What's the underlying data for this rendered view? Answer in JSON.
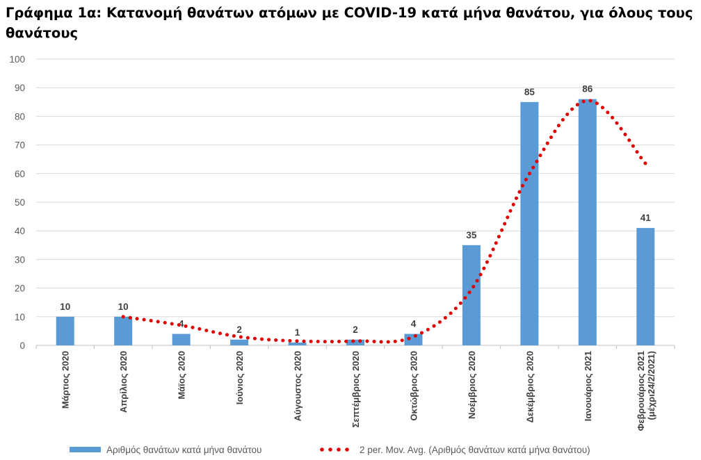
{
  "title": "Γράφημα 1α: Κατανομή θανάτων ατόμων με COVID-19 κατά μήνα θανάτου, για όλους τους θανάτους",
  "chart_data": {
    "type": "bar",
    "title": "Γράφημα 1α: Κατανομή θανάτων ατόμων με COVID-19 κατά μήνα θανάτου, για όλους τους θανάτους",
    "categories": [
      "Μάρτιος 2020",
      "Απρίλιος 2020",
      "Μάϊος 2020",
      "Ιούνιος 2020",
      "Αύγουστος 2020",
      "Σεπτέμβριος 2020",
      "Οκτώβριος 2020",
      "Νοέμβριος 2020",
      "Δεκέμβριος 2020",
      "Ιανουάριος 2021",
      "Φεβρουάριος 2021|(μέχρι24/2/2021)"
    ],
    "series": [
      {
        "name": "Αριθμός θανάτων κατά μήνα θανάτου",
        "type": "bar",
        "color": "#5b9bd5",
        "values": [
          10,
          10,
          4,
          2,
          1,
          2,
          4,
          35,
          85,
          86,
          41
        ],
        "data_labels": [
          "10",
          "10",
          "4",
          "2",
          "1",
          "2",
          "4",
          "35",
          "85",
          "86",
          "41"
        ]
      },
      {
        "name": "2 per. Mov. Avg. (Αριθμός θανάτων κατά μήνα θανάτου)",
        "type": "line",
        "style": "dotted",
        "color": "#e00000",
        "values": [
          null,
          10,
          7,
          3,
          1.5,
          1.5,
          3,
          19.5,
          60,
          85.5,
          63.5
        ]
      }
    ],
    "ylim": [
      0,
      100
    ],
    "yticks": [
      0,
      10,
      20,
      30,
      40,
      50,
      60,
      70,
      80,
      90,
      100
    ],
    "grid": true,
    "legend": "bottom"
  }
}
